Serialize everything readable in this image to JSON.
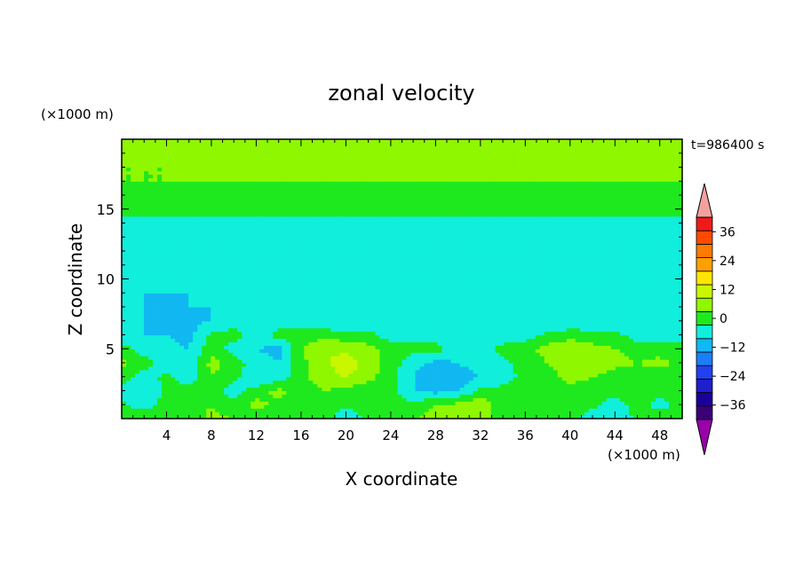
{
  "chart_data": {
    "type": "heatmap",
    "title": "zonal velocity",
    "xlabel": "X coordinate",
    "ylabel": "Z coordinate",
    "x_unit": "(×1000 m)",
    "y_unit": "(×1000 m)",
    "time_label": "t=986400 s",
    "xlim": [
      0,
      50
    ],
    "ylim": [
      0,
      20
    ],
    "x_ticks": [
      4,
      8,
      12,
      16,
      20,
      24,
      28,
      32,
      36,
      40,
      44,
      48
    ],
    "y_ticks": [
      5,
      10,
      15
    ],
    "colorbar": {
      "levels": [
        -42,
        -36,
        -30,
        -24,
        -18,
        -12,
        -6,
        0,
        6,
        12,
        18,
        24,
        30,
        36,
        42
      ],
      "tick_labels": [
        "36",
        "24",
        "12",
        "0",
        "−12",
        "−24",
        "−36"
      ],
      "tick_values": [
        36,
        24,
        12,
        0,
        -12,
        -24,
        -36
      ],
      "colors": [
        "#3a0077",
        "#1a0099",
        "#1f1fcc",
        "#2240ee",
        "#1a7ff7",
        "#11b8f2",
        "#11eedc",
        "#1ee91e",
        "#8ff700",
        "#c8f700",
        "#ffe600",
        "#ffa000",
        "#ff7a00",
        "#ff4a00",
        "#ee1a1a"
      ],
      "under_color": "#9900aa",
      "over_color": "#f5a0a0"
    },
    "field": {
      "description_grid_x": [
        0,
        2,
        4,
        6,
        8,
        10,
        12,
        14,
        16,
        18,
        20,
        22,
        24,
        26,
        28,
        30,
        32,
        34,
        36,
        38,
        40,
        42,
        44,
        46,
        48,
        50
      ],
      "description_grid_z": [
        0,
        1,
        2,
        3,
        4,
        5,
        6,
        7,
        8,
        9,
        10,
        11,
        12,
        13,
        14,
        15,
        16,
        17,
        18,
        19,
        20
      ],
      "rows": [
        [
          3,
          6,
          4,
          2,
          8,
          6,
          3,
          2,
          6,
          4,
          -6,
          2,
          3,
          6,
          8,
          10,
          8,
          4,
          2,
          4,
          6,
          -6,
          -6,
          2,
          4,
          3
        ],
        [
          2,
          -4,
          3,
          2,
          6,
          2,
          8,
          4,
          2,
          4,
          2,
          3,
          4,
          2,
          6,
          8,
          10,
          3,
          2,
          2,
          4,
          2,
          -3,
          2,
          -2,
          2
        ],
        [
          -3,
          -6,
          2,
          3,
          2,
          -3,
          3,
          8,
          3,
          6,
          4,
          2,
          3,
          -6,
          -8,
          -6,
          2,
          2,
          3,
          6,
          4,
          3,
          2,
          4,
          2,
          3
        ],
        [
          4,
          -4,
          2,
          -4,
          6,
          2,
          -6,
          -3,
          4,
          10,
          12,
          8,
          2,
          -6,
          -12,
          -9,
          -6,
          -3,
          2,
          3,
          8,
          6,
          3,
          2,
          3,
          4
        ],
        [
          8,
          3,
          -3,
          -4,
          8,
          3,
          -3,
          -6,
          4,
          10,
          16,
          10,
          3,
          -4,
          -8,
          -6,
          -4,
          -2,
          3,
          6,
          12,
          10,
          8,
          6,
          8,
          4
        ],
        [
          3,
          -3,
          -4,
          -6,
          4,
          -3,
          -6,
          -8,
          6,
          12,
          10,
          8,
          3,
          2,
          3,
          -4,
          -3,
          2,
          4,
          8,
          10,
          8,
          6,
          4,
          3,
          2
        ],
        [
          -4,
          -6,
          -6,
          -8,
          2,
          3,
          -3,
          2,
          3,
          4,
          3,
          2,
          -3,
          -3,
          -4,
          -6,
          -6,
          -4,
          -3,
          2,
          4,
          3,
          2,
          -3,
          -4,
          -3
        ],
        [
          -6,
          -6,
          -8,
          -8,
          -6,
          -4,
          -4,
          -3,
          -4,
          -6,
          -6,
          -6,
          -6,
          -6,
          -6,
          -6,
          -6,
          -6,
          -6,
          -6,
          -6,
          -6,
          -6,
          -6,
          -6,
          -6
        ],
        [
          -4,
          -6,
          -8,
          -6,
          -6,
          -6,
          -6,
          -6,
          -6,
          -6,
          -6,
          -6,
          -4,
          -6,
          -6,
          -6,
          -6,
          -4,
          -4,
          -6,
          -6,
          -4,
          -4,
          -6,
          -6,
          -6
        ],
        [
          -6,
          -6,
          -6,
          -6,
          -6,
          -6,
          -6,
          -6,
          -6,
          -6,
          -6,
          -6,
          -6,
          -6,
          -6,
          -6,
          -6,
          -6,
          -6,
          -6,
          -6,
          -6,
          -6,
          -6,
          -6,
          -6
        ],
        [
          -6,
          -6,
          -6,
          -6,
          -6,
          -3,
          -3,
          -6,
          -6,
          -6,
          -6,
          -6,
          -6,
          -6,
          -6,
          -6,
          -6,
          -6,
          -6,
          -6,
          -6,
          -6,
          -6,
          -6,
          -6,
          -6
        ],
        [
          -6,
          -6,
          -6,
          -6,
          -6,
          -6,
          -3,
          -3,
          -3,
          -3,
          -6,
          -6,
          -6,
          -6,
          -6,
          -6,
          -6,
          -6,
          -6,
          -6,
          -6,
          -6,
          -6,
          -6,
          -6,
          -6
        ],
        [
          -6,
          -6,
          -6,
          -6,
          -6,
          -6,
          -6,
          -6,
          -6,
          -6,
          -6,
          -6,
          -6,
          -6,
          -6,
          -6,
          -6,
          -4,
          -6,
          -6,
          -6,
          -6,
          -6,
          -6,
          -6,
          -6
        ],
        [
          -3,
          -3,
          -3,
          -4,
          -4,
          -6,
          -6,
          -6,
          -6,
          -6,
          -6,
          -6,
          -6,
          -6,
          -6,
          -6,
          -6,
          -6,
          -6,
          -6,
          -6,
          -6,
          -6,
          -6,
          -6,
          -6
        ],
        [
          -3,
          -3,
          -3,
          -3,
          -3,
          -3,
          -3,
          -3,
          -3,
          -3,
          -3,
          -3,
          -3,
          -3,
          -3,
          -3,
          -3,
          -3,
          -3,
          -3,
          -3,
          -3,
          -3,
          -3,
          -3,
          -3
        ],
        [
          2,
          2,
          2,
          2,
          2,
          2,
          2,
          2,
          2,
          2,
          2,
          2,
          2,
          2,
          2,
          2,
          2,
          2,
          2,
          2,
          2,
          2,
          2,
          2,
          2,
          2
        ],
        [
          4,
          4,
          4,
          4,
          4,
          4,
          4,
          4,
          4,
          4,
          4,
          4,
          4,
          4,
          4,
          4,
          4,
          4,
          4,
          4,
          4,
          4,
          4,
          4,
          4,
          4
        ],
        [
          6,
          6,
          6,
          6,
          6,
          6,
          6,
          6,
          6,
          6,
          6,
          6,
          6,
          6,
          6,
          6,
          6,
          6,
          6,
          6,
          6,
          6,
          6,
          6,
          6,
          6
        ],
        [
          6,
          6,
          6,
          6,
          6,
          6,
          6,
          6,
          6,
          6,
          6,
          6,
          6,
          6,
          6,
          6,
          6,
          6,
          6,
          6,
          6,
          6,
          6,
          6,
          6,
          6
        ],
        [
          8,
          8,
          8,
          8,
          8,
          8,
          8,
          8,
          8,
          8,
          8,
          8,
          8,
          8,
          8,
          8,
          8,
          8,
          8,
          10,
          10,
          10,
          8,
          8,
          8,
          8
        ],
        [
          8,
          8,
          8,
          8,
          8,
          8,
          8,
          8,
          8,
          8,
          8,
          8,
          8,
          8,
          8,
          8,
          8,
          8,
          8,
          10,
          10,
          10,
          10,
          8,
          8,
          8
        ]
      ]
    }
  }
}
